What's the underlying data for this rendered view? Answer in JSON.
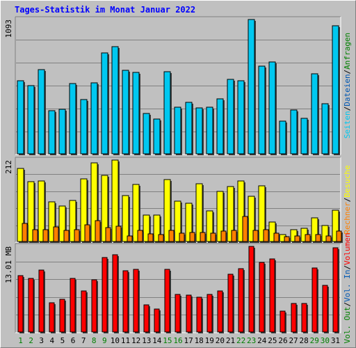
{
  "title": "Tages-Statistik im Monat Januar 2022",
  "colors": {
    "background": "#c0c0c0",
    "grid": "#808080",
    "title": "#0000ff",
    "seiten": "#00c8f0",
    "dateien": "#0058b4",
    "anfragen": "#008000",
    "besuche": "#ffff00",
    "rechner": "#ff8000",
    "volumen": "#ff0000",
    "weekend_label": "#008000",
    "day_label": "#000000"
  },
  "chart_data": [
    {
      "type": "bar",
      "panel": "top",
      "max_label": "1093",
      "legend": [
        {
          "text": "Anfragen",
          "color": "#008000"
        },
        {
          "text": "/",
          "color": "#000000"
        },
        {
          "text": "Dateien",
          "color": "#0058b4"
        },
        {
          "text": "/",
          "color": "#000000"
        },
        {
          "text": "Seiten",
          "color": "#00c8f0"
        }
      ],
      "ylim": [
        0,
        1093
      ],
      "categories": [
        "1",
        "2",
        "3",
        "4",
        "5",
        "6",
        "7",
        "8",
        "9",
        "10",
        "11",
        "12",
        "13",
        "14",
        "15",
        "16",
        "17",
        "18",
        "19",
        "20",
        "21",
        "22",
        "23",
        "24",
        "25",
        "26",
        "27",
        "28",
        "29",
        "30",
        "31"
      ],
      "series": [
        {
          "name": "Seiten",
          "values": [
            595,
            560,
            685,
            355,
            365,
            575,
            445,
            580,
            820,
            875,
            680,
            665,
            335,
            290,
            670,
            385,
            425,
            380,
            385,
            450,
            610,
            595,
            1093,
            715,
            750,
            270,
            360,
            295,
            655,
            410,
            1045
          ]
        }
      ]
    },
    {
      "type": "bar",
      "panel": "middle",
      "max_label": "212",
      "legend": [
        {
          "text": "Besuche",
          "color": "#ffff00"
        },
        {
          "text": "/",
          "color": "#000000"
        },
        {
          "text": "Rechner",
          "color": "#ff8000"
        }
      ],
      "ylim": [
        0,
        212
      ],
      "categories": [
        "1",
        "2",
        "3",
        "4",
        "5",
        "6",
        "7",
        "8",
        "9",
        "10",
        "11",
        "12",
        "13",
        "14",
        "15",
        "16",
        "17",
        "18",
        "19",
        "20",
        "21",
        "22",
        "23",
        "24",
        "25",
        "26",
        "27",
        "28",
        "29",
        "30",
        "31"
      ],
      "series": [
        {
          "name": "Besuche",
          "values": [
            190,
            157,
            159,
            105,
            93,
            107,
            163,
            205,
            172,
            212,
            121,
            150,
            70,
            70,
            162,
            106,
            101,
            151,
            81,
            132,
            143,
            159,
            118,
            146,
            52,
            20,
            33,
            36,
            62,
            44,
            82
          ]
        },
        {
          "name": "Rechner",
          "values": [
            49,
            33,
            33,
            39,
            31,
            32,
            45,
            55,
            37,
            42,
            17,
            30,
            21,
            20,
            30,
            24,
            26,
            25,
            23,
            28,
            31,
            66,
            31,
            33,
            23,
            15,
            17,
            20,
            19,
            17,
            28
          ]
        }
      ]
    },
    {
      "type": "bar",
      "panel": "bottom",
      "max_label": "13.01 MB",
      "legend": [
        {
          "text": "Volumen",
          "color": "#ff0000"
        },
        {
          "text": "/",
          "color": "#000000"
        },
        {
          "text": "Vol. In",
          "color": "#0058b4"
        },
        {
          "text": "/",
          "color": "#000000"
        },
        {
          "text": "Vol. Out",
          "color": "#008000"
        }
      ],
      "ylim": [
        0,
        13.01
      ],
      "categories": [
        "1",
        "2",
        "3",
        "4",
        "5",
        "6",
        "7",
        "8",
        "9",
        "10",
        "11",
        "12",
        "13",
        "14",
        "15",
        "16",
        "17",
        "18",
        "19",
        "20",
        "21",
        "22",
        "23",
        "24",
        "25",
        "26",
        "27",
        "28",
        "29",
        "30",
        "31"
      ],
      "series": [
        {
          "name": "Volumen",
          "values": [
            8.6,
            8.2,
            9.4,
            4.5,
            5.0,
            8.2,
            6.3,
            8.0,
            11.3,
            11.8,
            9.3,
            9.6,
            4.2,
            3.6,
            9.5,
            5.8,
            5.7,
            5.4,
            5.8,
            6.3,
            8.8,
            9.7,
            13.01,
            10.6,
            11.1,
            3.3,
            4.4,
            4.4,
            9.8,
            7.1,
            12.8
          ]
        }
      ]
    }
  ],
  "x_labels": {
    "weekend_days": [
      "1",
      "2",
      "8",
      "9",
      "15",
      "16",
      "22",
      "23",
      "29",
      "30"
    ]
  }
}
